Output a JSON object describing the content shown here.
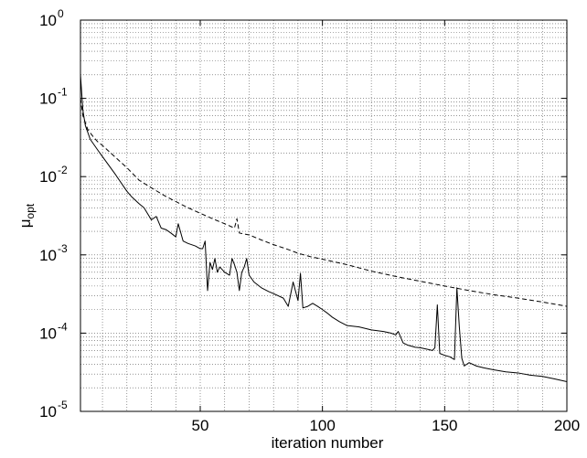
{
  "chart_data": {
    "type": "line",
    "xlabel": "iteration number",
    "ylabel": "μ",
    "ylabel_subscript": "opt",
    "xlim": [
      1,
      200
    ],
    "ylim": [
      1e-05,
      1
    ],
    "yscale": "log",
    "grid": true,
    "x_ticks": [
      50,
      100,
      150,
      200
    ],
    "x_tick_labels": [
      "50",
      "100",
      "150",
      "200"
    ],
    "y_ticks": [
      1e-05,
      0.0001,
      0.001,
      0.01,
      0.1,
      1
    ],
    "y_tick_base": "10",
    "y_tick_exponents": [
      "-5",
      "-4",
      "-3",
      "-2",
      "-1",
      "0"
    ],
    "series": [
      {
        "style": "solid",
        "points": [
          [
            1,
            0.2
          ],
          [
            2,
            0.07
          ],
          [
            3,
            0.045
          ],
          [
            5,
            0.03
          ],
          [
            8,
            0.022
          ],
          [
            10,
            0.018
          ],
          [
            15,
            0.011
          ],
          [
            20,
            0.0065
          ],
          [
            22,
            0.0055
          ],
          [
            25,
            0.0045
          ],
          [
            27,
            0.004
          ],
          [
            30,
            0.0028
          ],
          [
            32,
            0.0031
          ],
          [
            34,
            0.0022
          ],
          [
            36,
            0.0021
          ],
          [
            38,
            0.0019
          ],
          [
            40,
            0.0017
          ],
          [
            41,
            0.0025
          ],
          [
            43,
            0.0015
          ],
          [
            45,
            0.0014
          ],
          [
            48,
            0.0013
          ],
          [
            50,
            0.0012
          ],
          [
            51,
            0.0012
          ],
          [
            52,
            0.0015
          ],
          [
            53,
            0.00035
          ],
          [
            54,
            0.0008
          ],
          [
            55,
            0.00065
          ],
          [
            56,
            0.0009
          ],
          [
            57,
            0.0006
          ],
          [
            58,
            0.0007
          ],
          [
            60,
            0.0006
          ],
          [
            62,
            0.00055
          ],
          [
            63,
            0.0009
          ],
          [
            64,
            0.00075
          ],
          [
            65,
            0.0006
          ],
          [
            66,
            0.00035
          ],
          [
            67,
            0.0006
          ],
          [
            68,
            0.0007
          ],
          [
            69,
            0.0009
          ],
          [
            70,
            0.00055
          ],
          [
            72,
            0.00045
          ],
          [
            75,
            0.00038
          ],
          [
            78,
            0.00034
          ],
          [
            80,
            0.00032
          ],
          [
            84,
            0.00028
          ],
          [
            86,
            0.00022
          ],
          [
            88,
            0.00045
          ],
          [
            90,
            0.00026
          ],
          [
            91,
            0.00058
          ],
          [
            92,
            0.00021
          ],
          [
            94,
            0.00022
          ],
          [
            96,
            0.00024
          ],
          [
            98,
            0.00022
          ],
          [
            100,
            0.0002
          ],
          [
            102,
            0.00018
          ],
          [
            104,
            0.00016
          ],
          [
            107,
            0.00014
          ],
          [
            110,
            0.000125
          ],
          [
            115,
            0.00012
          ],
          [
            120,
            0.00011
          ],
          [
            125,
            0.000105
          ],
          [
            128,
            0.0001
          ],
          [
            130,
            9.5e-05
          ],
          [
            131,
            0.000105
          ],
          [
            133,
            7.5e-05
          ],
          [
            135,
            7e-05
          ],
          [
            138,
            6.6e-05
          ],
          [
            140,
            6.5e-05
          ],
          [
            143,
            6.2e-05
          ],
          [
            145,
            6e-05
          ],
          [
            146,
            6.5e-05
          ],
          [
            147,
            0.00023
          ],
          [
            148,
            5.5e-05
          ],
          [
            150,
            5.2e-05
          ],
          [
            152,
            5e-05
          ],
          [
            154,
            4.6e-05
          ],
          [
            155,
            0.00038
          ],
          [
            156,
            0.00012
          ],
          [
            157,
            4.8e-05
          ],
          [
            158,
            3.8e-05
          ],
          [
            160,
            4.2e-05
          ],
          [
            163,
            3.8e-05
          ],
          [
            166,
            3.6e-05
          ],
          [
            170,
            3.4e-05
          ],
          [
            175,
            3.2e-05
          ],
          [
            180,
            3.1e-05
          ],
          [
            185,
            2.9e-05
          ],
          [
            190,
            2.8e-05
          ],
          [
            195,
            2.6e-05
          ],
          [
            200,
            2.4e-05
          ]
        ]
      },
      {
        "style": "dashed",
        "points": [
          [
            1,
            0.1
          ],
          [
            2,
            0.06
          ],
          [
            4,
            0.04
          ],
          [
            6,
            0.033
          ],
          [
            8,
            0.028
          ],
          [
            10,
            0.025
          ],
          [
            15,
            0.018
          ],
          [
            20,
            0.013
          ],
          [
            25,
            0.009
          ],
          [
            30,
            0.0072
          ],
          [
            35,
            0.0058
          ],
          [
            40,
            0.0048
          ],
          [
            45,
            0.004
          ],
          [
            50,
            0.0034
          ],
          [
            55,
            0.0029
          ],
          [
            60,
            0.0025
          ],
          [
            64,
            0.0022
          ],
          [
            65,
            0.0029
          ],
          [
            66,
            0.0019
          ],
          [
            70,
            0.0018
          ],
          [
            75,
            0.00155
          ],
          [
            80,
            0.00135
          ],
          [
            85,
            0.0012
          ],
          [
            90,
            0.00105
          ],
          [
            95,
            0.00095
          ],
          [
            100,
            0.00088
          ],
          [
            110,
            0.00075
          ],
          [
            120,
            0.00062
          ],
          [
            130,
            0.00053
          ],
          [
            140,
            0.00046
          ],
          [
            150,
            0.0004
          ],
          [
            160,
            0.00035
          ],
          [
            170,
            0.00031
          ],
          [
            180,
            0.00028
          ],
          [
            190,
            0.00025
          ],
          [
            200,
            0.00022
          ]
        ]
      }
    ]
  }
}
